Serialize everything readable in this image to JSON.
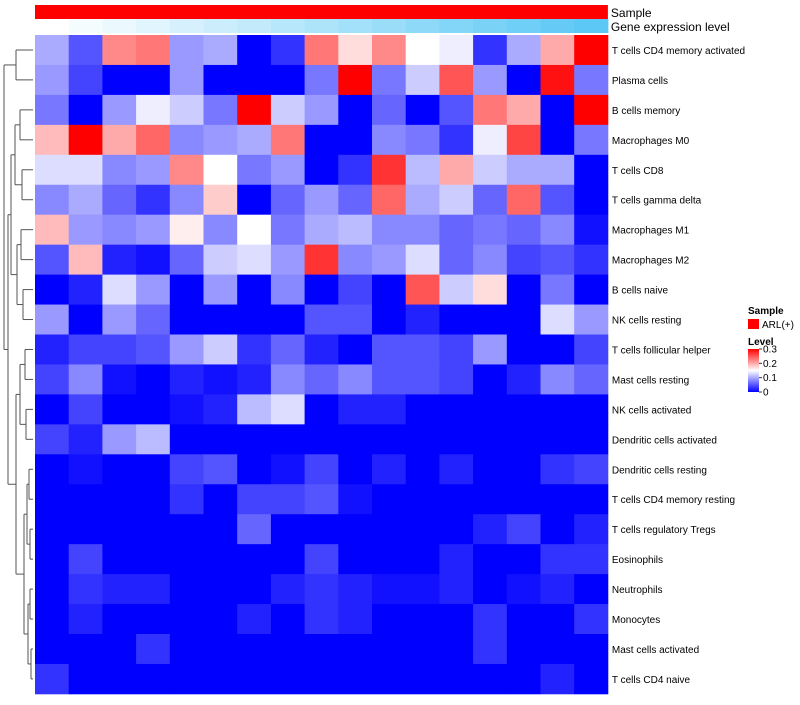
{
  "chart_data": {
    "type": "heatmap",
    "title": "",
    "annotation_tracks": [
      {
        "name": "Sample",
        "label": "Sample",
        "color": "#ff0000"
      },
      {
        "name": "Gene expression level",
        "label": "Gene expression level",
        "gradient": [
          "#ffffff",
          "#5bc8f5"
        ]
      }
    ],
    "rows": [
      "T cells CD4 memory activated",
      "Plasma cells",
      "B cells memory",
      "Macrophages M0",
      "T cells CD8",
      "T cells gamma delta",
      "Macrophages M1",
      "Macrophages M2",
      "B cells naive",
      "NK cells resting",
      "T cells follicular helper",
      "Mast cells resting",
      "NK cells activated",
      "Dendritic cells activated",
      "Dendritic cells resting",
      "T cells CD4 memory resting",
      "T cells regulatory  Tregs",
      "Eosinophils",
      "Neutrophils",
      "Monocytes",
      "Mast cells activated",
      "T cells CD4 naive"
    ],
    "n_columns": 17,
    "values": [
      [
        0.1,
        0.05,
        0.22,
        0.23,
        0.09,
        0.1,
        0.0,
        0.03,
        0.23,
        0.17,
        0.22,
        0.15,
        0.14,
        0.03,
        0.1,
        0.2,
        0.3
      ],
      [
        0.09,
        0.04,
        0.0,
        0.0,
        0.09,
        0.0,
        0.0,
        0.0,
        0.07,
        0.3,
        0.07,
        0.12,
        0.25,
        0.09,
        0.0,
        0.29,
        0.07
      ],
      [
        0.07,
        0.0,
        0.09,
        0.14,
        0.12,
        0.07,
        0.3,
        0.12,
        0.09,
        0.0,
        0.06,
        0.0,
        0.05,
        0.23,
        0.2,
        0.0,
        0.3
      ],
      [
        0.19,
        0.3,
        0.2,
        0.24,
        0.08,
        0.09,
        0.1,
        0.23,
        0.0,
        0.0,
        0.08,
        0.07,
        0.03,
        0.14,
        0.26,
        0.0,
        0.07
      ],
      [
        0.13,
        0.13,
        0.08,
        0.09,
        0.22,
        0.15,
        0.07,
        0.09,
        0.0,
        0.03,
        0.27,
        0.11,
        0.2,
        0.12,
        0.1,
        0.1,
        0.0
      ],
      [
        0.08,
        0.1,
        0.06,
        0.03,
        0.08,
        0.18,
        0.0,
        0.06,
        0.09,
        0.06,
        0.24,
        0.1,
        0.12,
        0.06,
        0.24,
        0.05,
        0.0
      ],
      [
        0.19,
        0.09,
        0.08,
        0.09,
        0.16,
        0.08,
        0.15,
        0.07,
        0.1,
        0.11,
        0.08,
        0.08,
        0.06,
        0.07,
        0.06,
        0.08,
        0.01
      ],
      [
        0.05,
        0.19,
        0.02,
        0.01,
        0.06,
        0.12,
        0.13,
        0.09,
        0.27,
        0.08,
        0.09,
        0.13,
        0.06,
        0.08,
        0.04,
        0.05,
        0.03
      ],
      [
        0.0,
        0.02,
        0.13,
        0.09,
        0.0,
        0.09,
        0.0,
        0.08,
        0.0,
        0.04,
        0.0,
        0.25,
        0.12,
        0.17,
        0.0,
        0.07,
        0.0
      ],
      [
        0.09,
        0.0,
        0.09,
        0.06,
        0.0,
        0.0,
        0.0,
        0.0,
        0.05,
        0.05,
        0.0,
        0.02,
        0.0,
        0.0,
        0.0,
        0.13,
        0.09
      ],
      [
        0.02,
        0.04,
        0.04,
        0.05,
        0.09,
        0.12,
        0.03,
        0.06,
        0.02,
        0.0,
        0.05,
        0.05,
        0.04,
        0.09,
        0.0,
        0.0,
        0.04
      ],
      [
        0.04,
        0.08,
        0.01,
        0.0,
        0.02,
        0.01,
        0.02,
        0.08,
        0.06,
        0.08,
        0.05,
        0.05,
        0.04,
        0.0,
        0.02,
        0.08,
        0.06
      ],
      [
        0.0,
        0.04,
        0.0,
        0.0,
        0.01,
        0.02,
        0.11,
        0.13,
        0.0,
        0.02,
        0.02,
        0.0,
        0.0,
        0.0,
        0.0,
        0.0,
        0.0
      ],
      [
        0.04,
        0.02,
        0.09,
        0.11,
        0.0,
        0.0,
        0.0,
        0.0,
        0.0,
        0.0,
        0.0,
        0.0,
        0.0,
        0.0,
        0.0,
        0.0,
        0.0
      ],
      [
        0.0,
        0.01,
        0.0,
        0.0,
        0.04,
        0.05,
        0.0,
        0.01,
        0.04,
        0.0,
        0.02,
        0.0,
        0.02,
        0.0,
        0.0,
        0.03,
        0.04
      ],
      [
        0.0,
        0.0,
        0.0,
        0.0,
        0.03,
        0.0,
        0.04,
        0.04,
        0.05,
        0.01,
        0.0,
        0.0,
        0.0,
        0.0,
        0.0,
        0.0,
        0.0
      ],
      [
        0.0,
        0.0,
        0.0,
        0.0,
        0.0,
        0.0,
        0.06,
        0.0,
        0.0,
        0.0,
        0.0,
        0.0,
        0.0,
        0.02,
        0.04,
        0.0,
        0.02
      ],
      [
        0.0,
        0.04,
        0.0,
        0.0,
        0.0,
        0.0,
        0.0,
        0.0,
        0.04,
        0.0,
        0.0,
        0.0,
        0.02,
        0.0,
        0.0,
        0.03,
        0.03
      ],
      [
        0.0,
        0.03,
        0.02,
        0.02,
        0.0,
        0.0,
        0.0,
        0.02,
        0.03,
        0.02,
        0.01,
        0.01,
        0.02,
        0.0,
        0.01,
        0.02,
        0.0
      ],
      [
        0.0,
        0.02,
        0.0,
        0.0,
        0.0,
        0.0,
        0.02,
        0.0,
        0.03,
        0.02,
        0.0,
        0.0,
        0.0,
        0.03,
        0.0,
        0.0,
        0.03
      ],
      [
        0.0,
        0.0,
        0.0,
        0.03,
        0.0,
        0.0,
        0.0,
        0.0,
        0.0,
        0.0,
        0.0,
        0.0,
        0.0,
        0.03,
        0.0,
        0.0,
        0.0
      ],
      [
        0.03,
        0.0,
        0.0,
        0.0,
        0.0,
        0.0,
        0.0,
        0.0,
        0.0,
        0.0,
        0.0,
        0.0,
        0.0,
        0.0,
        0.0,
        0.02,
        0.0
      ]
    ],
    "color_scale": {
      "min": 0,
      "max": 0.3,
      "low": "#0000ff",
      "mid": "#ffffff",
      "high": "#ff0000",
      "mid_value": 0.15
    },
    "legend": {
      "sample": {
        "title": "Sample",
        "entries": [
          {
            "label": "ARL(+)",
            "color": "#ff0000"
          }
        ]
      },
      "level": {
        "title": "Level",
        "ticks": [
          {
            "label": "0.3",
            "value": 0.3
          },
          {
            "label": "0.2",
            "value": 0.2
          },
          {
            "label": "0.1",
            "value": 0.1
          },
          {
            "label": "0",
            "value": 0
          }
        ]
      }
    },
    "legend_position": "right",
    "row_dendrogram": "left"
  }
}
